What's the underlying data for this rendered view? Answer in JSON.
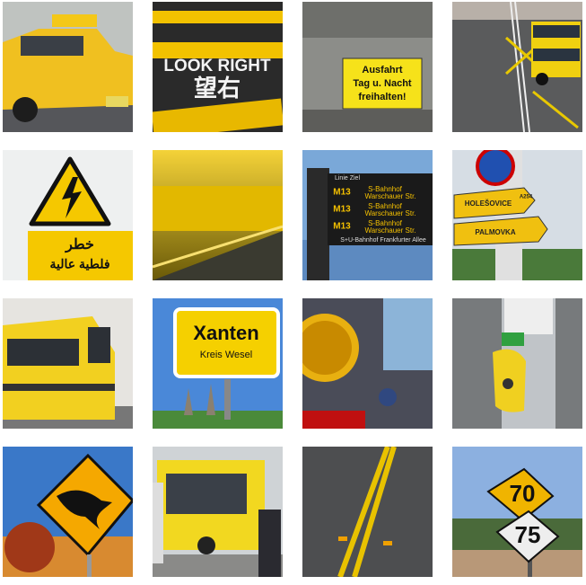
{
  "signs": {
    "crosswalk": [
      "LOOK RIGHT",
      "望右"
    ],
    "exit": [
      "Ausfahrt",
      "Tag u. Nacht",
      "freihalten!"
    ],
    "warning": [
      "خطر",
      "فلطية عالية"
    ],
    "departures": {
      "header": "Linie  Ziel",
      "rows": [
        [
          "M13",
          "S-Bahnhof",
          "Warschauer Str."
        ],
        [
          "M13",
          "S-Bahnhof",
          "Warschauer Str."
        ],
        [
          "M13",
          "S-Bahnhof",
          "Warschauer Str."
        ]
      ],
      "footer": "S+U-Bahnhof Frankfurter Allee"
    },
    "directions": [
      "HOLEŠOVICE",
      "PALMOVKA",
      "A254"
    ],
    "town": [
      "Xanten",
      "Kreis Wesel"
    ],
    "speed": [
      "70",
      "75"
    ]
  }
}
